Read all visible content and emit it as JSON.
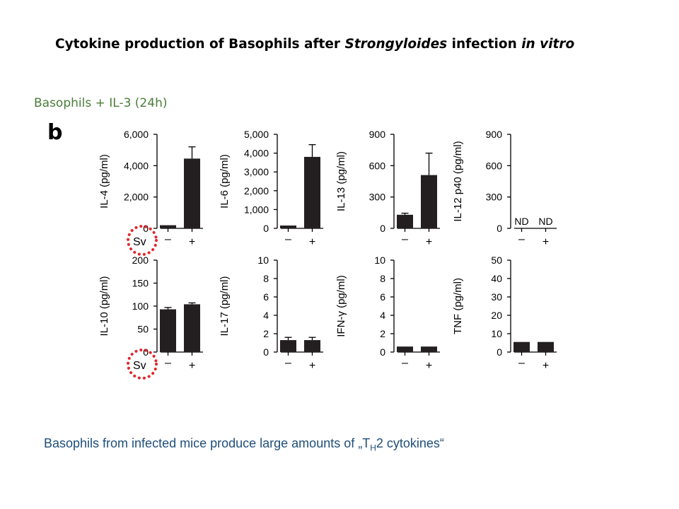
{
  "slide": {
    "title_part1": "Cytokine production of Basophils after ",
    "title_italic1": "Strongyloides",
    "title_part2": " infection ",
    "title_italic2": "in vitro",
    "subtitle": "Basophils + IL-3 (24h)",
    "panel_letter": "b",
    "caption_part1": "Basophils from infected mice produce large amounts of „T",
    "caption_sub": "H",
    "caption_part2": "2 cytokines“"
  },
  "colors": {
    "bar": "#231f20",
    "highlight_circle": "#e0262b",
    "subtitle": "#4a7d3a",
    "caption": "#1f4e79"
  },
  "group_axis_label": "Sv",
  "chart_data": [
    {
      "type": "bar",
      "ylabel": "IL-4 (pg/ml)",
      "categories": [
        "–",
        "+"
      ],
      "values": [
        200,
        4450
      ],
      "errors": [
        null,
        750
      ],
      "ylim": [
        0,
        6000
      ],
      "yticks": [
        0,
        2000,
        4000,
        6000
      ],
      "ytick_labels": [
        "0",
        "2,000",
        "4,000",
        "6,000"
      ],
      "show_group_label": true,
      "nd": false
    },
    {
      "type": "bar",
      "ylabel": "IL-6 (pg/ml)",
      "categories": [
        "–",
        "+"
      ],
      "values": [
        150,
        3800
      ],
      "errors": [
        null,
        650
      ],
      "ylim": [
        0,
        5000
      ],
      "yticks": [
        0,
        1000,
        2000,
        3000,
        4000,
        5000
      ],
      "ytick_labels": [
        "0",
        "1,000",
        "2,000",
        "3,000",
        "4,000",
        "5,000"
      ],
      "show_group_label": false,
      "nd": false
    },
    {
      "type": "bar",
      "ylabel": "IL-13 (pg/ml)",
      "categories": [
        "–",
        "+"
      ],
      "values": [
        130,
        510
      ],
      "errors": [
        15,
        210
      ],
      "ylim": [
        0,
        900
      ],
      "yticks": [
        0,
        300,
        600,
        900
      ],
      "ytick_labels": [
        "0",
        "300",
        "600",
        "900"
      ],
      "show_group_label": false,
      "nd": false
    },
    {
      "type": "bar",
      "ylabel": "IL-12 p40 (pg/ml)",
      "categories": [
        "–",
        "+"
      ],
      "values": [
        null,
        null
      ],
      "errors": [
        null,
        null
      ],
      "ylim": [
        0,
        900
      ],
      "yticks": [
        0,
        300,
        600,
        900
      ],
      "ytick_labels": [
        "0",
        "300",
        "600",
        "900"
      ],
      "show_group_label": false,
      "nd": true,
      "nd_labels": [
        "ND",
        "ND"
      ]
    },
    {
      "type": "bar",
      "ylabel": "IL-10 (pg/ml)",
      "categories": [
        "–",
        "+"
      ],
      "values": [
        93,
        104
      ],
      "errors": [
        4,
        3
      ],
      "ylim": [
        0,
        200
      ],
      "yticks": [
        0,
        50,
        100,
        150,
        200
      ],
      "ytick_labels": [
        "0",
        "50",
        "100",
        "150",
        "200"
      ],
      "show_group_label": true,
      "nd": false
    },
    {
      "type": "bar",
      "ylabel": "IL-17 (pg/ml)",
      "categories": [
        "–",
        "+"
      ],
      "values": [
        1.3,
        1.3
      ],
      "errors": [
        0.3,
        0.3
      ],
      "ylim": [
        0,
        10
      ],
      "yticks": [
        0,
        2,
        4,
        6,
        8,
        10
      ],
      "ytick_labels": [
        "0",
        "2",
        "4",
        "6",
        "8",
        "10"
      ],
      "show_group_label": false,
      "nd": false
    },
    {
      "type": "bar",
      "ylabel": "IFN-γ (pg/ml)",
      "categories": [
        "–",
        "+"
      ],
      "values": [
        0.6,
        0.6
      ],
      "errors": [
        null,
        null
      ],
      "ylim": [
        0,
        10
      ],
      "yticks": [
        0,
        2,
        4,
        6,
        8,
        10
      ],
      "ytick_labels": [
        "0",
        "2",
        "4",
        "6",
        "8",
        "10"
      ],
      "show_group_label": false,
      "nd": false
    },
    {
      "type": "bar",
      "ylabel": "TNF (pg/ml)",
      "categories": [
        "–",
        "+"
      ],
      "values": [
        5.5,
        5.5
      ],
      "errors": [
        null,
        null
      ],
      "ylim": [
        0,
        50
      ],
      "yticks": [
        0,
        10,
        20,
        30,
        40,
        50
      ],
      "ytick_labels": [
        "0",
        "10",
        "20",
        "30",
        "40",
        "50"
      ],
      "show_group_label": false,
      "nd": false
    }
  ]
}
